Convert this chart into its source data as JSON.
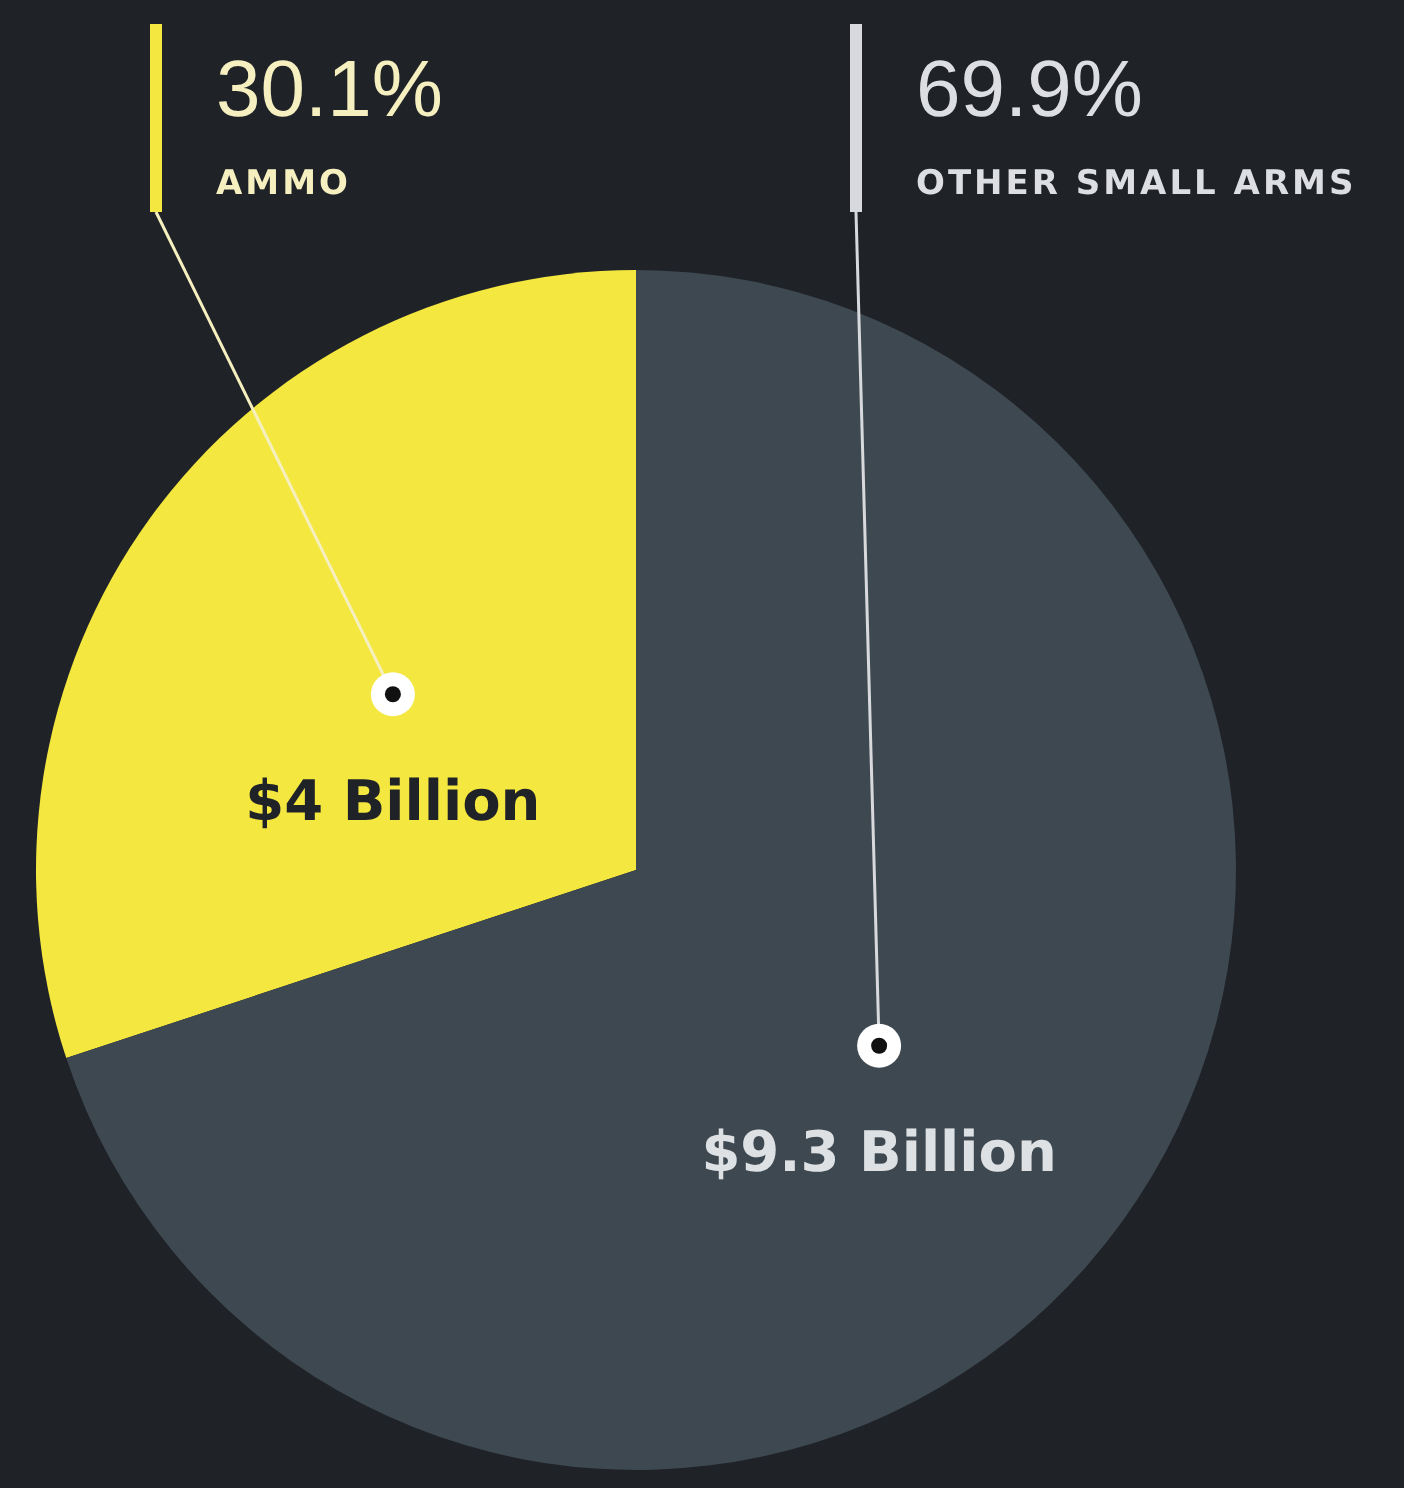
{
  "chart_data": {
    "type": "pie",
    "categories": [
      "AMMO",
      "OTHER SMALL ARMS"
    ],
    "values": [
      4,
      9.3
    ],
    "colors": [
      "#f4e740",
      "#3e4850"
    ],
    "value_labels": [
      "$4 Billion",
      "$9.3 Billion"
    ],
    "annotations": [
      "30.1%",
      "69.9%"
    ]
  }
}
